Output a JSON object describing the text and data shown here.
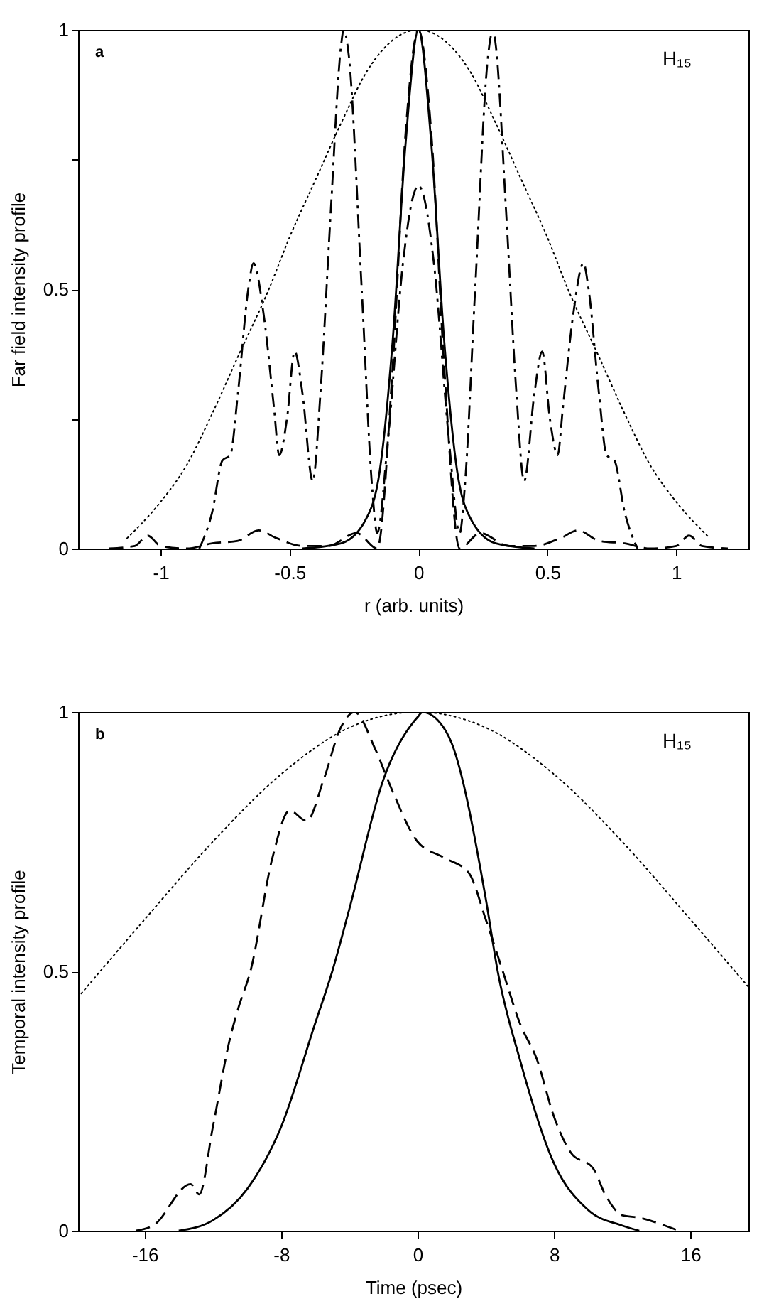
{
  "chart_data": [
    {
      "type": "line",
      "xlabel": "r (arb. units)",
      "ylabel": "Far field intensity profile",
      "annotations": [
        "a",
        "H₁₅"
      ],
      "xlim": [
        -1.32,
        1.28
      ],
      "xticks": [
        -1,
        -0.5,
        0,
        0.5,
        1
      ],
      "ylim": [
        0,
        1
      ],
      "yticks": [
        0,
        {
          "value": 0.25,
          "label": null
        },
        0.5,
        {
          "value": 0.75,
          "label": null
        },
        1
      ],
      "grid": false,
      "series": [
        {
          "color": "#000000",
          "line_style": "dotted",
          "x": [
            -1.13,
            -1.0,
            -0.9,
            -0.8,
            -0.7,
            -0.58,
            -0.5,
            -0.4,
            -0.3,
            -0.2,
            -0.1,
            0,
            0.1,
            0.2,
            0.3,
            0.4,
            0.5,
            0.58,
            0.7,
            0.8,
            0.9,
            1.0,
            1.13
          ],
          "values": [
            0.02,
            0.09,
            0.16,
            0.26,
            0.37,
            0.5,
            0.6,
            0.71,
            0.82,
            0.92,
            0.98,
            1,
            0.98,
            0.92,
            0.82,
            0.71,
            0.6,
            0.5,
            0.37,
            0.26,
            0.16,
            0.09,
            0.02
          ]
        },
        {
          "color": "#000000",
          "line_style": "solid",
          "x": [
            -0.45,
            -0.3,
            -0.2,
            -0.15,
            -0.1,
            -0.05,
            0,
            0.05,
            0.1,
            0.15,
            0.2,
            0.3,
            0.45
          ],
          "values": [
            0,
            0.01,
            0.06,
            0.15,
            0.4,
            0.78,
            1,
            0.78,
            0.4,
            0.15,
            0.06,
            0.01,
            0
          ]
        },
        {
          "color": "#000000",
          "line_style": "dashed",
          "x": [
            -1.2,
            -1.1,
            -1.05,
            -1.0,
            -0.9,
            -0.8,
            -0.7,
            -0.62,
            -0.55,
            -0.45,
            -0.35,
            -0.24,
            -0.16,
            -0.1,
            -0.05,
            0,
            0.05,
            0.1,
            0.16,
            0.24,
            0.35,
            0.45,
            0.55,
            0.62,
            0.7,
            0.8,
            0.9,
            1.0,
            1.05,
            1.1,
            1.2
          ],
          "values": [
            0,
            0.005,
            0.025,
            0.005,
            0,
            0.01,
            0.015,
            0.035,
            0.02,
            0.005,
            0.005,
            0.03,
            0,
            0.35,
            0.8,
            1,
            0.8,
            0.35,
            0,
            0.03,
            0.005,
            0.005,
            0.02,
            0.035,
            0.015,
            0.01,
            0,
            0.005,
            0.025,
            0.005,
            0
          ]
        },
        {
          "color": "#000000",
          "line_style": "dashdot",
          "x": [
            -0.85,
            -0.8,
            -0.76,
            -0.73,
            -0.7,
            -0.66,
            -0.64,
            -0.6,
            -0.56,
            -0.54,
            -0.51,
            -0.48,
            -0.45,
            -0.41,
            -0.38,
            -0.34,
            -0.3,
            -0.29,
            -0.27,
            -0.22,
            -0.18,
            -0.16,
            -0.12,
            -0.06,
            -0.02,
            0,
            0.02,
            0.06,
            0.12,
            0.16,
            0.18,
            0.22,
            0.27,
            0.29,
            0.3,
            0.34,
            0.38,
            0.41,
            0.45,
            0.48,
            0.51,
            0.54,
            0.56,
            0.6,
            0.64,
            0.66,
            0.7,
            0.73,
            0.76,
            0.8,
            0.85
          ],
          "values": [
            0,
            0.07,
            0.17,
            0.18,
            0.3,
            0.5,
            0.55,
            0.45,
            0.27,
            0.18,
            0.25,
            0.38,
            0.3,
            0.13,
            0.3,
            0.65,
            0.97,
            1,
            0.95,
            0.5,
            0.12,
            0.03,
            0.2,
            0.55,
            0.68,
            0.7,
            0.68,
            0.55,
            0.2,
            0.03,
            0.12,
            0.5,
            0.95,
            1,
            0.97,
            0.65,
            0.3,
            0.13,
            0.3,
            0.38,
            0.25,
            0.18,
            0.27,
            0.45,
            0.55,
            0.5,
            0.3,
            0.18,
            0.17,
            0.07,
            0
          ]
        }
      ]
    },
    {
      "type": "line",
      "xlabel": "Time (psec)",
      "ylabel": "Temporal intensity profile",
      "annotations": [
        "b",
        "H₁₅"
      ],
      "xlim": [
        -19.9,
        19.4
      ],
      "xticks": [
        -16,
        -8,
        0,
        8,
        16
      ],
      "ylim": [
        0,
        1
      ],
      "yticks": [
        0,
        0.5,
        1
      ],
      "grid": false,
      "series": [
        {
          "color": "#000000",
          "line_style": "dotted",
          "x": [
            -19.9,
            -16,
            -12,
            -8,
            -4,
            0,
            4,
            8,
            12,
            16,
            19.4
          ],
          "values": [
            0.45,
            0.6,
            0.75,
            0.88,
            0.97,
            1,
            0.97,
            0.88,
            0.75,
            0.6,
            0.47
          ]
        },
        {
          "color": "#000000",
          "line_style": "solid",
          "x": [
            -14,
            -12,
            -10,
            -8,
            -6,
            -5,
            -4,
            -2,
            0,
            0.3,
            1,
            2,
            4,
            4.7,
            6,
            8,
            10,
            12,
            13
          ],
          "values": [
            0,
            0.02,
            0.08,
            0.2,
            0.4,
            0.5,
            0.62,
            0.87,
            0.99,
            1,
            0.99,
            0.94,
            0.64,
            0.5,
            0.33,
            0.13,
            0.04,
            0.01,
            0
          ]
        },
        {
          "color": "#000000",
          "line_style": "dashed",
          "x": [
            -16.5,
            -15.5,
            -13.3,
            -12.8,
            -12,
            -11,
            -10.5,
            -9.8,
            -8.5,
            -7.5,
            -6.5,
            -5.5,
            -4.5,
            -3.7,
            -2.5,
            -1.5,
            0,
            1.5,
            3,
            4,
            5,
            6,
            7,
            8,
            9,
            10.3,
            11,
            12,
            13,
            14.5,
            15.3
          ],
          "values": [
            0,
            0.01,
            0.09,
            0.07,
            0.2,
            0.37,
            0.43,
            0.5,
            0.72,
            0.81,
            0.79,
            0.87,
            0.97,
            1,
            0.93,
            0.85,
            0.75,
            0.72,
            0.69,
            0.6,
            0.5,
            0.4,
            0.33,
            0.22,
            0.15,
            0.12,
            0.07,
            0.03,
            0.025,
            0.01,
            0
          ]
        }
      ]
    }
  ]
}
